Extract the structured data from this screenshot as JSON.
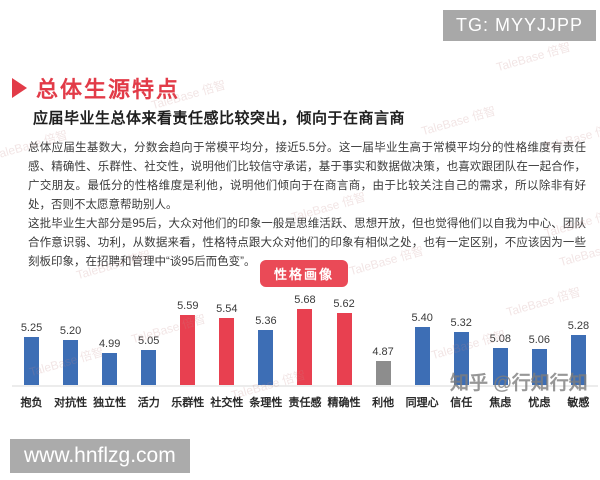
{
  "header": {
    "tg_label": "TG: MYYJJPP",
    "title": "总体生源特点",
    "subtitle": "应届毕业生总体来看责任感比较突出，倾向于在商言商"
  },
  "body": {
    "paragraphs": [
      "总体应届生基数大，分数会趋向于常模平均分，接近5.5分。这一届毕业生高于常模平均分的性格维度有责任感、精确性、乐群性、社交性，说明他们比较信守承诺，基于事实和数据做决策，也喜欢跟团队在一起合作，广交朋友。最低分的性格维度是利他，说明他们倾向于在商言商，由于比较关注自己的需求，所以除非有好处，否则不太愿意帮助别人。",
      "这批毕业生大部分是95后，大众对他们的印象一般是思维活跃、思想开放，但也觉得他们以自我为中心、团队合作意识弱、功利，从数据来看，性格特点跟大众对他们的印象有相似之处，也有一定区别，不应该因为一些刻板印象，在招聘和管理中“谈95后而色变”。"
    ]
  },
  "chart_data": {
    "type": "bar",
    "title": "性格画像",
    "categories": [
      "抱负",
      "对抗性",
      "独立性",
      "活力",
      "乐群性",
      "社交性",
      "条理性",
      "责任感",
      "精确性",
      "利他",
      "同理心",
      "信任",
      "焦虑",
      "忧虑",
      "敏感"
    ],
    "values": [
      5.25,
      5.2,
      4.99,
      5.05,
      5.59,
      5.54,
      5.36,
      5.68,
      5.62,
      4.87,
      5.4,
      5.32,
      5.08,
      5.06,
      5.28
    ],
    "bar_colors": [
      "blue",
      "blue",
      "blue",
      "blue",
      "red",
      "red",
      "blue",
      "red",
      "red",
      "gray",
      "blue",
      "blue",
      "blue",
      "blue",
      "blue"
    ],
    "palette": {
      "blue": "#3d6eb5",
      "red": "#e84050",
      "gray": "#8d8d8d"
    },
    "xlabel": "",
    "ylabel": "",
    "ylim": [
      4.5,
      5.9
    ],
    "grid": false,
    "legend": "none",
    "value_labels": true
  },
  "watermarks": {
    "zhihu": "知乎 @行知行知",
    "talebase": "TaleBase 倍智"
  },
  "footer": {
    "website": "www.hnflzg.com"
  },
  "colors": {
    "title_red": "#e23b48",
    "badge_red": "#ea4a57",
    "box_gray": "#a9a9a9",
    "axis_line": "#ececec"
  }
}
